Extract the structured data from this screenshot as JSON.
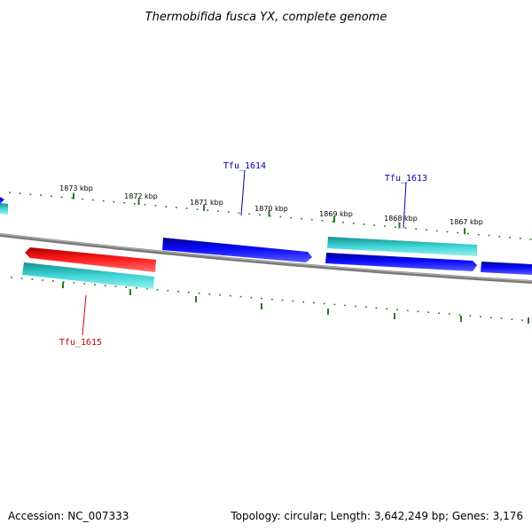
{
  "title": "Thermobifida fusca YX, complete genome",
  "footer": {
    "accession": "Accession: NC_007333",
    "summary": "Topology: circular; Length: 3,642,249 bp; Genes: 3,176"
  },
  "colors": {
    "forward_gene": "#0000ee",
    "reverse_gene": "#ee1111",
    "cds": "#22bbbb",
    "backbone": "#777777",
    "tick": "#2a7a2a",
    "label_forward": "#0000aa",
    "label_reverse": "#cc0000"
  },
  "ticks": [
    {
      "kbp": 1873,
      "label": "1873 kbp"
    },
    {
      "kbp": 1872,
      "label": "1872 kbp"
    },
    {
      "kbp": 1871,
      "label": "1871 kbp"
    },
    {
      "kbp": 1870,
      "label": "1870 kbp"
    },
    {
      "kbp": 1869,
      "label": "1869 kbp"
    },
    {
      "kbp": 1868,
      "label": "1868 kbp"
    },
    {
      "kbp": 1867,
      "label": "1867 kbp"
    }
  ],
  "gene_labels": [
    {
      "name": "Tfu_1614",
      "strand": "forward"
    },
    {
      "name": "Tfu_1613",
      "strand": "forward"
    },
    {
      "name": "Tfu_1615",
      "strand": "reverse"
    }
  ]
}
